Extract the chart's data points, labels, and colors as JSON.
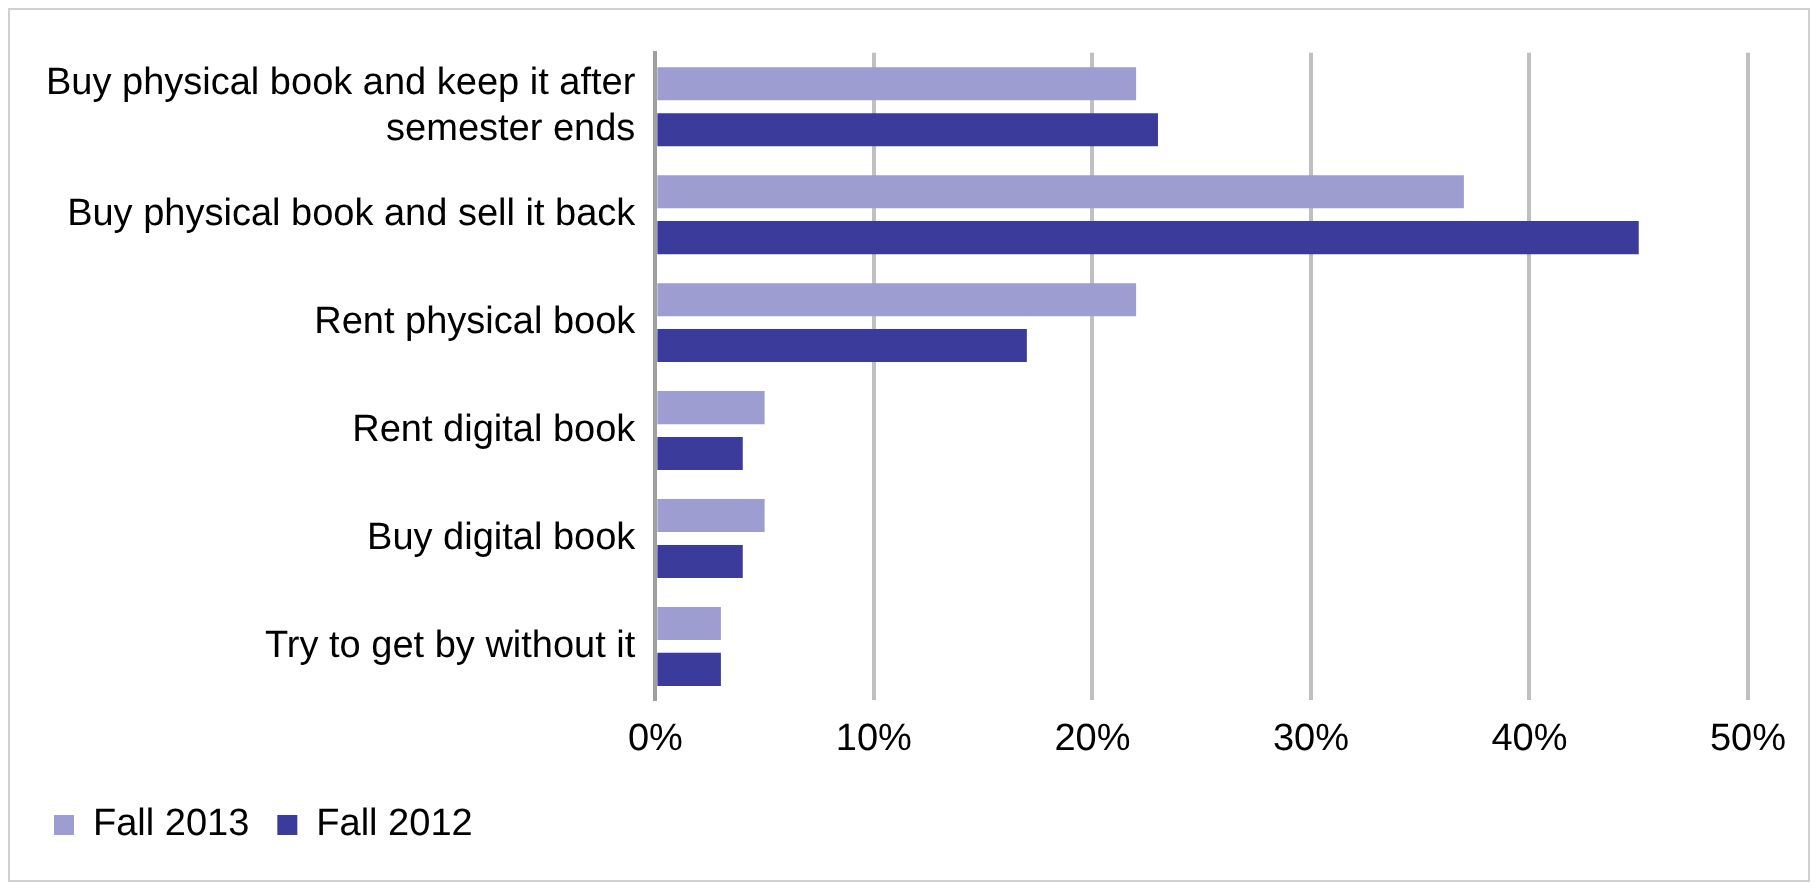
{
  "chart_data": {
    "type": "bar",
    "orientation": "horizontal",
    "categories": [
      "Buy physical book and keep it after semester ends",
      "Buy physical book and sell it back",
      "Rent physical book",
      "Rent digital book",
      "Buy digital book",
      "Try to get by without it"
    ],
    "series": [
      {
        "name": "Fall 2013",
        "color": "#9d9dd2",
        "values": [
          22,
          37,
          22,
          5,
          5,
          3
        ]
      },
      {
        "name": "Fall 2012",
        "color": "#3b3b9c",
        "values": [
          23,
          45,
          17,
          4,
          4,
          3
        ]
      }
    ],
    "xlim": [
      0,
      50
    ],
    "xticks": [
      {
        "value": 0,
        "label": "0%"
      },
      {
        "value": 10,
        "label": "10%"
      },
      {
        "value": 20,
        "label": "20%"
      },
      {
        "value": 30,
        "label": "30%"
      },
      {
        "value": 40,
        "label": "40%"
      },
      {
        "value": 50,
        "label": "50%"
      }
    ],
    "grid": "x",
    "legend": "bottom"
  }
}
